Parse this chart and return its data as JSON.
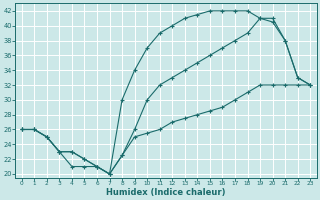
{
  "xlabel": "Humidex (Indice chaleur)",
  "bg_color": "#cce8e8",
  "grid_color": "#ffffff",
  "line_color": "#1a6b6b",
  "xlim": [
    -0.5,
    23.5
  ],
  "ylim": [
    19.5,
    43
  ],
  "xticks": [
    0,
    1,
    2,
    3,
    4,
    5,
    6,
    7,
    8,
    9,
    10,
    11,
    12,
    13,
    14,
    15,
    16,
    17,
    18,
    19,
    20,
    21,
    22,
    23
  ],
  "yticks": [
    20,
    22,
    24,
    26,
    28,
    30,
    32,
    34,
    36,
    38,
    40,
    42
  ],
  "line1_x": [
    0,
    1,
    2,
    3,
    4,
    5,
    6,
    7,
    8,
    9,
    10,
    11,
    12,
    13,
    14,
    15,
    16,
    17,
    18,
    19,
    20,
    21,
    22,
    23
  ],
  "line1_y": [
    26,
    26,
    25,
    23,
    21,
    21,
    21,
    20,
    30,
    34,
    37,
    39,
    40,
    41,
    41.5,
    42,
    42,
    42,
    42,
    41,
    40.5,
    38,
    33,
    32
  ],
  "line2_x": [
    0,
    1,
    2,
    3,
    4,
    5,
    6,
    7,
    8,
    9,
    10,
    11,
    12,
    13,
    14,
    15,
    16,
    17,
    18,
    19,
    20,
    21,
    22,
    23
  ],
  "line2_y": [
    26,
    26,
    25,
    23,
    23,
    22,
    21,
    20,
    22.5,
    26,
    30,
    32,
    33,
    34,
    35,
    36,
    37,
    38,
    39,
    41,
    41,
    38,
    33,
    32
  ],
  "line3_x": [
    0,
    1,
    2,
    3,
    4,
    5,
    6,
    7,
    8,
    9,
    10,
    11,
    12,
    13,
    14,
    15,
    16,
    17,
    18,
    19,
    20,
    21,
    22,
    23
  ],
  "line3_y": [
    26,
    26,
    25,
    23,
    23,
    22,
    21,
    20,
    22.5,
    25,
    25.5,
    26,
    27,
    27.5,
    28,
    28.5,
    29,
    30,
    31,
    32,
    32,
    32,
    32,
    32
  ]
}
